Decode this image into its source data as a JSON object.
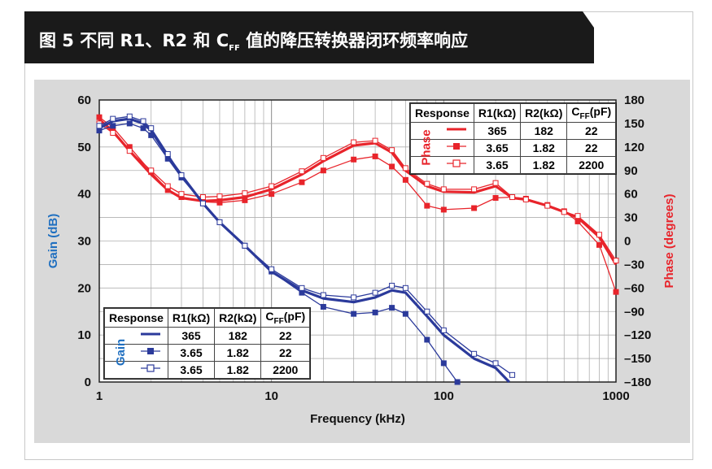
{
  "title": "图 5 不同 R1、R2 和 C值的降压转换器闭环频率响应",
  "title_parts": {
    "before": "图 5 不同 R1、R2 和 C",
    "sub": "FF",
    "after": " 值的降压转换器闭环频率响应"
  },
  "colors": {
    "gain": "#2b3a9b",
    "phase": "#e8242b",
    "axis_gain": "#1f6fc0",
    "axis_phase": "#e8242b"
  },
  "chart_data": {
    "type": "line",
    "x_scale": "log",
    "xlim": [
      1,
      1000
    ],
    "xlabel": "Frequency (kHz)",
    "x_ticks": [
      "1",
      "10",
      "100",
      "1000"
    ],
    "ylabel_left": "Gain (dB)",
    "ylim_left": [
      0,
      60
    ],
    "y_ticks_left": [
      "0",
      "10",
      "20",
      "30",
      "40",
      "50",
      "60"
    ],
    "ylabel_right": "Phase (degrees)",
    "ylim_right": [
      -180,
      180
    ],
    "y_ticks_right": [
      "180",
      "150",
      "120",
      "90",
      "60",
      "30",
      "0",
      "–30",
      "–60",
      "–90",
      "–120",
      "–150",
      "–180"
    ],
    "grid": true,
    "gain_series": [
      {
        "name": "365 / 182 / 22",
        "marker": "line",
        "x": [
          1,
          1.2,
          1.5,
          1.8,
          2,
          2.5,
          3,
          4,
          5,
          7,
          10,
          15,
          20,
          30,
          40,
          50,
          60,
          80,
          100,
          150,
          200,
          240
        ],
        "y": [
          54,
          55.5,
          56,
          55,
          53.5,
          48,
          44,
          38,
          34,
          29,
          23.5,
          19.5,
          17.8,
          17,
          18,
          19.5,
          19,
          14,
          10,
          5,
          3,
          0
        ]
      },
      {
        "name": "3.65 / 1.82 / 22",
        "marker": "filled-square",
        "x": [
          1,
          1.2,
          1.5,
          1.8,
          2,
          2.5,
          3,
          4,
          5,
          7,
          10,
          15,
          20,
          30,
          40,
          50,
          60,
          80,
          100,
          120
        ],
        "y": [
          53.5,
          54.5,
          55,
          54,
          52.5,
          47.5,
          43.5,
          38,
          34,
          29,
          23.5,
          19,
          16,
          14.5,
          14.8,
          15.8,
          14.5,
          9,
          4,
          0
        ]
      },
      {
        "name": "3.65 / 1.82 / 2200",
        "marker": "open-square",
        "x": [
          1,
          1.2,
          1.5,
          1.8,
          2,
          2.5,
          3,
          4,
          5,
          7,
          10,
          15,
          20,
          30,
          40,
          50,
          60,
          80,
          100,
          150,
          200,
          250
        ],
        "y": [
          54.5,
          56,
          56.5,
          55.5,
          54,
          48.5,
          44,
          38,
          34,
          29,
          24,
          20,
          18.5,
          18,
          19,
          20.5,
          20,
          15,
          11,
          6,
          4,
          1.5
        ]
      }
    ],
    "phase_series": [
      {
        "name": "365 / 182 / 22",
        "marker": "line",
        "x": [
          1,
          1.2,
          1.5,
          2,
          2.5,
          3,
          4,
          5,
          7,
          10,
          15,
          20,
          30,
          40,
          50,
          60,
          80,
          100,
          150,
          200,
          250,
          300,
          400,
          500,
          600,
          800,
          1000
        ],
        "y": [
          155,
          140,
          115,
          85,
          65,
          55,
          51,
          52,
          56,
          66,
          85,
          102,
          122,
          125,
          113,
          90,
          70,
          63,
          62,
          70,
          55,
          53,
          45,
          37,
          30,
          5,
          -30
        ]
      },
      {
        "name": "3.65 / 1.82 / 22",
        "marker": "filled-square",
        "x": [
          1,
          1.2,
          1.5,
          2,
          2.5,
          3,
          4,
          5,
          7,
          10,
          15,
          20,
          30,
          40,
          50,
          60,
          80,
          100,
          150,
          200,
          250,
          300,
          400,
          500,
          600,
          800,
          1000
        ],
        "y": [
          158,
          145,
          120,
          88,
          65,
          56,
          50,
          49,
          52,
          60,
          75,
          90,
          104,
          108,
          95,
          78,
          45,
          40,
          42,
          55,
          56,
          54,
          46,
          38,
          25,
          -5,
          -65
        ]
      },
      {
        "name": "3.65 / 1.82 / 2200",
        "marker": "open-square",
        "x": [
          1,
          1.2,
          1.5,
          2,
          2.5,
          3,
          4,
          5,
          7,
          10,
          15,
          20,
          30,
          40,
          50,
          60,
          80,
          100,
          150,
          200,
          250,
          300,
          400,
          500,
          600,
          800,
          1000
        ],
        "y": [
          150,
          138,
          115,
          90,
          70,
          60,
          56,
          57,
          61,
          70,
          89,
          106,
          126,
          128,
          116,
          93,
          73,
          66,
          66,
          74,
          56,
          53,
          45,
          37,
          32,
          8,
          -25
        ]
      }
    ]
  },
  "legend_phase": {
    "side_label": "Phase",
    "headers": [
      "Response",
      "R1(kΩ)",
      "R2(kΩ)",
      "C"
    ],
    "header_sub": "FF",
    "header_suffix": "(pF)",
    "rows": [
      {
        "r1": "365",
        "r2": "182",
        "cff": "22"
      },
      {
        "r1": "3.65",
        "r2": "1.82",
        "cff": "22"
      },
      {
        "r1": "3.65",
        "r2": "1.82",
        "cff": "2200"
      }
    ]
  },
  "legend_gain": {
    "side_label": "Gain",
    "headers": [
      "Response",
      "R1(kΩ)",
      "R2(kΩ)",
      "C"
    ],
    "header_sub": "FF",
    "header_suffix": "(pF)",
    "rows": [
      {
        "r1": "365",
        "r2": "182",
        "cff": "22"
      },
      {
        "r1": "3.65",
        "r2": "1.82",
        "cff": "22"
      },
      {
        "r1": "3.65",
        "r2": "1.82",
        "cff": "2200"
      }
    ]
  }
}
